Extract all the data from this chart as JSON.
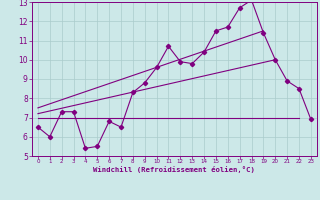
{
  "xlabel": "Windchill (Refroidissement éolien,°C)",
  "bg_color": "#cce8e8",
  "grid_color": "#aacccc",
  "line_color": "#800080",
  "spine_color": "#800080",
  "xlim": [
    -0.5,
    23.5
  ],
  "ylim": [
    5,
    13
  ],
  "xticks": [
    0,
    1,
    2,
    3,
    4,
    5,
    6,
    7,
    8,
    9,
    10,
    11,
    12,
    13,
    14,
    15,
    16,
    17,
    18,
    19,
    20,
    21,
    22,
    23
  ],
  "yticks": [
    5,
    6,
    7,
    8,
    9,
    10,
    11,
    12,
    13
  ],
  "series1_x": [
    0,
    1,
    2,
    3,
    4,
    5,
    6,
    7,
    8,
    9,
    10,
    11,
    12,
    13,
    14,
    15,
    16,
    17,
    18,
    19,
    20,
    21,
    22,
    23
  ],
  "series1_y": [
    6.5,
    6.0,
    7.3,
    7.3,
    5.4,
    5.5,
    6.8,
    6.5,
    8.3,
    8.8,
    9.6,
    10.7,
    9.9,
    9.8,
    10.4,
    11.5,
    11.7,
    12.7,
    13.1,
    11.4,
    10.0,
    8.9,
    8.5,
    6.9
  ],
  "series2_x": [
    0,
    22
  ],
  "series2_y": [
    7.0,
    7.0
  ],
  "series3_x": [
    0,
    19
  ],
  "series3_y": [
    7.5,
    11.5
  ],
  "series4_x": [
    0,
    20
  ],
  "series4_y": [
    7.2,
    10.0
  ]
}
